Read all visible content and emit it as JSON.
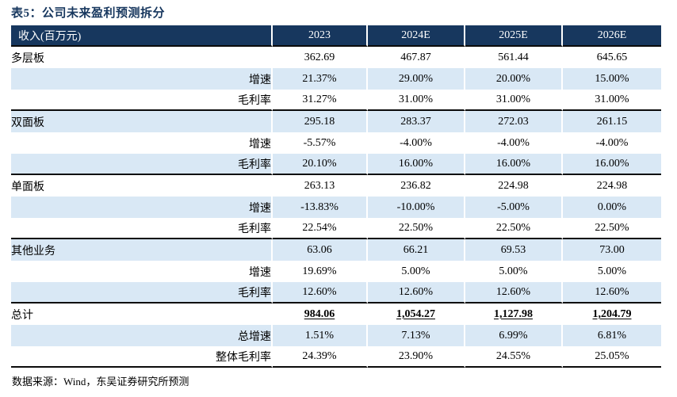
{
  "title": "表5：公司未来盈利预测拆分",
  "source": "数据来源：Wind，东吴证券研究所预测",
  "colors": {
    "header_bg": "#17375E",
    "band_bg": "#D9E8F5",
    "section_line": "#0b0b0b",
    "title_color": "#17375E"
  },
  "table": {
    "header": [
      "收入(百万元)",
      "2023",
      "2024E",
      "2025E",
      "2026E"
    ],
    "rows": [
      {
        "label": "多层板",
        "indent": "category",
        "shaded": false,
        "section_end": false,
        "emphasis": false,
        "values": [
          "362.69",
          "467.87",
          "561.44",
          "645.65"
        ]
      },
      {
        "label": "增速",
        "indent": "sub",
        "shaded": true,
        "section_end": false,
        "emphasis": false,
        "values": [
          "21.37%",
          "29.00%",
          "20.00%",
          "15.00%"
        ]
      },
      {
        "label": "毛利率",
        "indent": "sub",
        "shaded": false,
        "section_end": true,
        "emphasis": false,
        "values": [
          "31.27%",
          "31.00%",
          "31.00%",
          "31.00%"
        ]
      },
      {
        "label": "双面板",
        "indent": "category",
        "shaded": true,
        "section_end": false,
        "emphasis": false,
        "values": [
          "295.18",
          "283.37",
          "272.03",
          "261.15"
        ]
      },
      {
        "label": "增速",
        "indent": "sub",
        "shaded": false,
        "section_end": false,
        "emphasis": false,
        "values": [
          "-5.57%",
          "-4.00%",
          "-4.00%",
          "-4.00%"
        ]
      },
      {
        "label": "毛利率",
        "indent": "sub",
        "shaded": true,
        "section_end": true,
        "emphasis": false,
        "values": [
          "20.10%",
          "16.00%",
          "16.00%",
          "16.00%"
        ]
      },
      {
        "label": "单面板",
        "indent": "category",
        "shaded": false,
        "section_end": false,
        "emphasis": false,
        "values": [
          "263.13",
          "236.82",
          "224.98",
          "224.98"
        ]
      },
      {
        "label": "增速",
        "indent": "sub",
        "shaded": true,
        "section_end": false,
        "emphasis": false,
        "values": [
          "-13.83%",
          "-10.00%",
          "-5.00%",
          "0.00%"
        ]
      },
      {
        "label": "毛利率",
        "indent": "sub",
        "shaded": false,
        "section_end": true,
        "emphasis": false,
        "values": [
          "22.54%",
          "22.50%",
          "22.50%",
          "22.50%"
        ]
      },
      {
        "label": "其他业务",
        "indent": "category",
        "shaded": true,
        "section_end": false,
        "emphasis": false,
        "values": [
          "63.06",
          "66.21",
          "69.53",
          "73.00"
        ]
      },
      {
        "label": "增速",
        "indent": "sub",
        "shaded": false,
        "section_end": false,
        "emphasis": false,
        "values": [
          "19.69%",
          "5.00%",
          "5.00%",
          "5.00%"
        ]
      },
      {
        "label": "毛利率",
        "indent": "sub",
        "shaded": true,
        "section_end": true,
        "emphasis": false,
        "values": [
          "12.60%",
          "12.60%",
          "12.60%",
          "12.60%"
        ]
      },
      {
        "label": "总计",
        "indent": "category",
        "shaded": false,
        "section_end": false,
        "emphasis": true,
        "values": [
          "984.06",
          "1,054.27",
          "1,127.98",
          "1,204.79"
        ]
      },
      {
        "label": "总增速",
        "indent": "sub",
        "shaded": true,
        "section_end": false,
        "emphasis": false,
        "values": [
          "1.51%",
          "7.13%",
          "6.99%",
          "6.81%"
        ]
      },
      {
        "label": "整体毛利率",
        "indent": "sub",
        "shaded": false,
        "section_end": true,
        "emphasis": false,
        "values": [
          "24.39%",
          "23.90%",
          "24.55%",
          "25.05%"
        ]
      }
    ]
  }
}
